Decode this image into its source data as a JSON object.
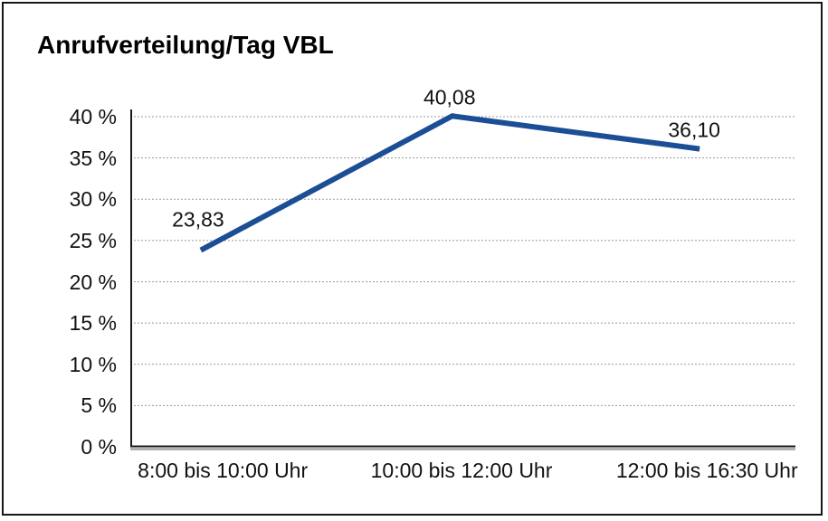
{
  "chart_data": {
    "type": "line",
    "title": "Anrufverteilung/Tag VBL",
    "categories": [
      "8:00 bis 10:00 Uhr",
      "10:00 bis 12:00 Uhr",
      "12:00 bis 16:30 Uhr"
    ],
    "series": [
      {
        "name": "Anrufverteilung/Tag VBL",
        "values": [
          23.83,
          40.08,
          36.1
        ],
        "point_labels": [
          "23,83",
          "40,08",
          "36,10"
        ]
      }
    ],
    "xlabel": "",
    "ylabel": "",
    "ylim": [
      0,
      40
    ],
    "ytick_step": 5,
    "ytick_labels": [
      "0 %",
      "5 %",
      "10 %",
      "15 %",
      "20 %",
      "25 %",
      "30 %",
      "35 %",
      "40 %"
    ],
    "grid": "horizontal-dotted",
    "legend": "none",
    "colors": {
      "line": "#1b4e94",
      "gridline": "#999999",
      "axis": "#1a1a1a",
      "axis_shadow": "#a6a6a6",
      "text": "#111111",
      "frame_border": "#161616",
      "background": "#ffffff"
    }
  }
}
